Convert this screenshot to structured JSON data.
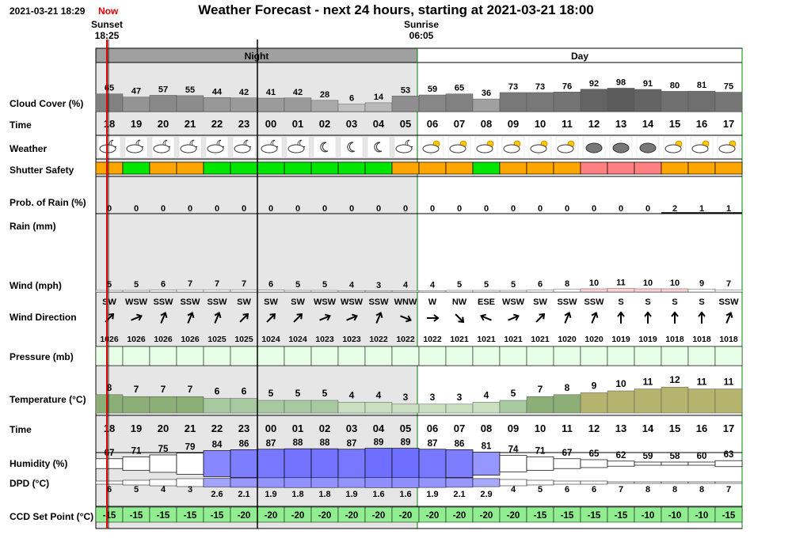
{
  "header": {
    "datetime": "2021-03-21 18:29",
    "now_label": "Now",
    "title": "Weather Forecast - next 24 hours, starting at 2021-03-21 18:00",
    "sunset_label": "Sunset",
    "sunset_time": "18:25",
    "sunrise_label": "Sunrise",
    "sunrise_time": "06:05",
    "night_label": "Night",
    "day_label": "Day"
  },
  "labels": {
    "cloud": "Cloud Cover (%)",
    "time": "Time",
    "weather": "Weather",
    "shutter": "Shutter Safety",
    "rain_prob": "Prob. of Rain (%)",
    "rain": "Rain (mm)",
    "wind": "Wind (mph)",
    "wind_dir": "Wind Direction",
    "pressure": "Pressure (mb)",
    "temperature": "Temperature (°C)",
    "time2": "Time",
    "humidity": "Humidity (%)",
    "dpd": "DPD (°C)",
    "ccd": "CCD Set Point (°C)"
  },
  "colors": {
    "night_bg": "#e6e6e6",
    "day_bg": "#ffffff",
    "night_header": "#a0a0a0",
    "shutter_orange": "#ffa500",
    "shutter_green": "#00e600",
    "shutter_pink": "#ff8080",
    "ccd_green": "#90ee90",
    "now_line": "#e00000"
  },
  "hours": [
    "18",
    "19",
    "20",
    "21",
    "22",
    "23",
    "00",
    "01",
    "02",
    "03",
    "04",
    "05",
    "06",
    "07",
    "08",
    "09",
    "10",
    "11",
    "12",
    "13",
    "14",
    "15",
    "16",
    "17"
  ],
  "is_night": [
    true,
    true,
    true,
    true,
    true,
    true,
    true,
    true,
    true,
    true,
    true,
    true,
    false,
    false,
    false,
    false,
    false,
    false,
    false,
    false,
    false,
    false,
    false,
    false
  ],
  "cloud_cover": [
    65,
    47,
    57,
    55,
    44,
    42,
    41,
    42,
    28,
    6,
    14,
    53,
    59,
    65,
    36,
    73,
    73,
    76,
    92,
    98,
    91,
    80,
    81,
    75
  ],
  "weather_icons": [
    "partly-cloudy-moon-icon",
    "partly-cloudy-moon-icon",
    "partly-cloudy-moon-icon",
    "partly-cloudy-moon-icon",
    "partly-cloudy-moon-icon",
    "partly-cloudy-moon-icon",
    "partly-cloudy-moon-icon",
    "partly-cloudy-moon-icon",
    "moon-icon",
    "moon-icon",
    "moon-icon",
    "partly-cloudy-moon-icon",
    "partly-cloudy-sun-icon",
    "partly-cloudy-sun-icon",
    "partly-cloudy-sun-icon",
    "partly-cloudy-sun-icon",
    "partly-cloudy-sun-icon",
    "partly-cloudy-sun-icon",
    "cloud-icon",
    "cloud-icon",
    "cloud-icon",
    "partly-cloudy-sun-icon",
    "partly-cloudy-sun-icon",
    "partly-cloudy-sun-icon"
  ],
  "shutter_safety": [
    "orange",
    "green",
    "orange",
    "orange",
    "green",
    "green",
    "green",
    "green",
    "green",
    "green",
    "green",
    "orange",
    "orange",
    "orange",
    "green",
    "orange",
    "orange",
    "orange",
    "pink",
    "pink",
    "pink",
    "orange",
    "orange",
    "orange"
  ],
  "rain_prob": [
    0,
    0,
    0,
    0,
    0,
    0,
    0,
    0,
    0,
    0,
    0,
    0,
    0,
    0,
    0,
    0,
    0,
    0,
    0,
    0,
    0,
    2,
    1,
    1
  ],
  "wind_speed": [
    5,
    5,
    6,
    7,
    7,
    7,
    6,
    5,
    5,
    4,
    3,
    4,
    4,
    5,
    5,
    5,
    6,
    8,
    10,
    11,
    10,
    10,
    9,
    7
  ],
  "wind_dir": [
    "SW",
    "WSW",
    "SSW",
    "SSW",
    "SSW",
    "SW",
    "SW",
    "SW",
    "WSW",
    "WSW",
    "SSW",
    "WNW",
    "W",
    "NW",
    "ESE",
    "WSW",
    "SW",
    "SSW",
    "SSW",
    "S",
    "S",
    "S",
    "S",
    "SSW"
  ],
  "pressure": [
    1026,
    1026,
    1026,
    1026,
    1025,
    1025,
    1024,
    1024,
    1023,
    1023,
    1022,
    1022,
    1022,
    1021,
    1021,
    1021,
    1021,
    1020,
    1020,
    1019,
    1019,
    1018,
    1018,
    1018
  ],
  "temperature": [
    8,
    7,
    7,
    7,
    6,
    6,
    5,
    5,
    5,
    4,
    4,
    3,
    3,
    3,
    4,
    5,
    7,
    8,
    9,
    10,
    11,
    12,
    11,
    11
  ],
  "humidity": [
    67,
    71,
    75,
    79,
    84,
    86,
    87,
    88,
    88,
    87,
    89,
    89,
    87,
    86,
    81,
    74,
    71,
    67,
    65,
    62,
    59,
    58,
    60,
    63
  ],
  "dpd": [
    "6",
    "5",
    "4",
    "3",
    "2.6",
    "2.1",
    "1.9",
    "1.8",
    "1.8",
    "1.9",
    "1.6",
    "1.6",
    "1.9",
    "2.1",
    "2.9",
    "4",
    "5",
    "6",
    "6",
    "7",
    "8",
    "8",
    "8",
    "7"
  ],
  "ccd_set_point": [
    -15,
    -15,
    -15,
    -15,
    -15,
    -20,
    -20,
    -20,
    -20,
    -20,
    -20,
    -20,
    -20,
    -20,
    -20,
    -20,
    -15,
    -15,
    -15,
    -15,
    -10,
    -10,
    -10,
    -15
  ]
}
